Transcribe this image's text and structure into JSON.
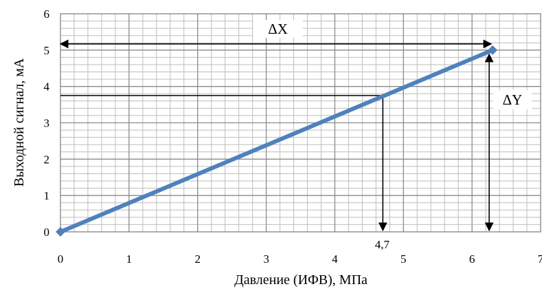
{
  "chart_data": {
    "type": "line",
    "xlabel": "Давление (ИФВ), МПа",
    "ylabel": "Выходной сигнал, мА",
    "xlim": [
      0,
      7
    ],
    "ylim": [
      0,
      6
    ],
    "x_major_ticks": [
      "0",
      "1",
      "2",
      "3",
      "4",
      "5",
      "6",
      "7"
    ],
    "y_major_ticks": [
      "0",
      "1",
      "2",
      "3",
      "4",
      "5",
      "6"
    ],
    "grid": true,
    "minor_grid_step_x": 0.2,
    "minor_grid_step_y": 0.2,
    "series": [
      {
        "x": [
          0,
          6.3
        ],
        "y": [
          0,
          5
        ],
        "color": "#4f81bd"
      }
    ],
    "annotations": {
      "delta_x": {
        "label": "ΔX",
        "x_from": 0,
        "x_to": 6.3,
        "y": 5.17
      },
      "delta_y": {
        "label": "ΔY",
        "x": 6.25,
        "y_from": 0,
        "y_to": 5
      },
      "reading": {
        "label": "4,7",
        "x": 4.7,
        "y": 3.75
      }
    }
  }
}
